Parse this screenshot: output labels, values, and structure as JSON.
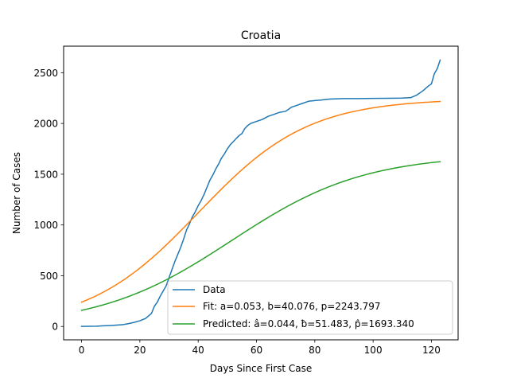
{
  "chart_data": {
    "type": "line",
    "title": "Croatia",
    "xlabel": "Days Since First Case",
    "ylabel": "Number of Cases",
    "xlim": [
      -6.15,
      129.15
    ],
    "ylim": [
      -131.5,
      2761.5
    ],
    "xticks": [
      0,
      20,
      40,
      60,
      80,
      100,
      120
    ],
    "yticks": [
      0,
      500,
      1000,
      1500,
      2000,
      2500
    ],
    "grid": false,
    "legend_position": "lower-right",
    "colors": {
      "data": "#1f77b4",
      "fit": "#ff7f0e",
      "predicted": "#2ca02c"
    },
    "series": [
      {
        "name": "Data",
        "kind": "observed",
        "color": "#1f77b4",
        "x": [
          0,
          5,
          10,
          14,
          16,
          18,
          20,
          22,
          24,
          25,
          26,
          27,
          28,
          29,
          30,
          31,
          32,
          33,
          34,
          35,
          36,
          37,
          38,
          39,
          40,
          41,
          42,
          43,
          44,
          45,
          46,
          47,
          48,
          49,
          50,
          51,
          52,
          53,
          54,
          55,
          56,
          57,
          58,
          59,
          60,
          62,
          64,
          66,
          68,
          70,
          72,
          74,
          75,
          76,
          78,
          80,
          82,
          85,
          88,
          90,
          95,
          100,
          105,
          110,
          113,
          115,
          117,
          119,
          120,
          121,
          122,
          123
        ],
        "y": [
          1,
          3,
          10,
          17,
          27,
          40,
          56,
          80,
          130,
          200,
          240,
          300,
          350,
          400,
          480,
          560,
          640,
          710,
          780,
          860,
          950,
          1010,
          1080,
          1130,
          1190,
          1240,
          1300,
          1370,
          1440,
          1490,
          1550,
          1600,
          1660,
          1700,
          1750,
          1790,
          1820,
          1850,
          1880,
          1900,
          1950,
          1980,
          2000,
          2010,
          2020,
          2040,
          2070,
          2090,
          2110,
          2120,
          2160,
          2180,
          2190,
          2200,
          2220,
          2225,
          2230,
          2240,
          2243,
          2245,
          2245,
          2247,
          2248,
          2250,
          2255,
          2280,
          2320,
          2370,
          2390,
          2490,
          2540,
          2625
        ]
      },
      {
        "name": "Fit: a=0.053, b=40.076, p=2243.797",
        "kind": "logistic",
        "a": 0.053,
        "b": 40.076,
        "p": 2243.797,
        "color": "#ff7f0e",
        "x_range": [
          0,
          123
        ]
      },
      {
        "name": "Predicted: â=0.044, ƀ=51.483, p̂=1693.340",
        "kind": "logistic",
        "a": 0.044,
        "b": 51.483,
        "p": 1693.34,
        "color": "#2ca02c",
        "x_range": [
          0,
          123
        ]
      }
    ]
  }
}
